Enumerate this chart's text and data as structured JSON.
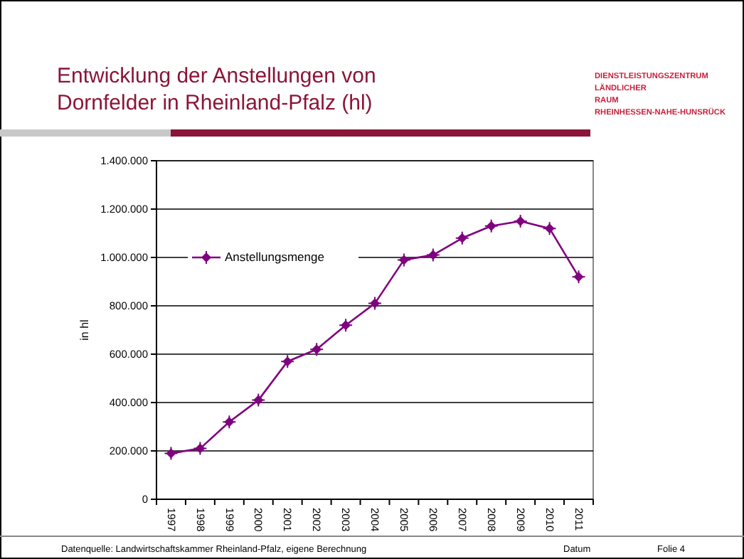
{
  "chart_data": {
    "type": "line",
    "title": "Entwicklung der Anstellungen von Dornfelder in Rheinland-Pfalz (hl)",
    "ylabel": "in hl",
    "categories": [
      "1997",
      "1998",
      "1999",
      "2000",
      "2001",
      "2002",
      "2003",
      "2004",
      "2005",
      "2006",
      "2007",
      "2008",
      "2009",
      "2010",
      "2011"
    ],
    "series": [
      {
        "name": "Anstellungsmenge",
        "color": "#800080",
        "values": [
          190000,
          210000,
          320000,
          410000,
          570000,
          620000,
          720000,
          810000,
          990000,
          1010000,
          1080000,
          1130000,
          1150000,
          1120000,
          920000
        ]
      }
    ],
    "ylim": [
      0,
      1400000
    ],
    "yticks": [
      {
        "value": 0,
        "label": "0"
      },
      {
        "value": 200000,
        "label": "200.000"
      },
      {
        "value": 400000,
        "label": "400.000"
      },
      {
        "value": 600000,
        "label": "600.000"
      },
      {
        "value": 800000,
        "label": "800.000"
      },
      {
        "value": 1000000,
        "label": "1.000.000"
      },
      {
        "value": 1200000,
        "label": "1.200.000"
      },
      {
        "value": 1400000,
        "label": "1.400.000"
      }
    ],
    "grid": "y",
    "legend": "top left",
    "marker": "diamond",
    "line_style": "solid",
    "annotations": [
      "DIENSTLEISTUNGSZENTRUM LÄNDLICHER RAUM RHEINHESSEN-NAHE-HUNSRÜCK",
      "Datenquelle: Landwirtschaftskammer Rheinland-Pfalz, eigene Berechnung",
      "Datum",
      "Folie 4"
    ]
  }
}
